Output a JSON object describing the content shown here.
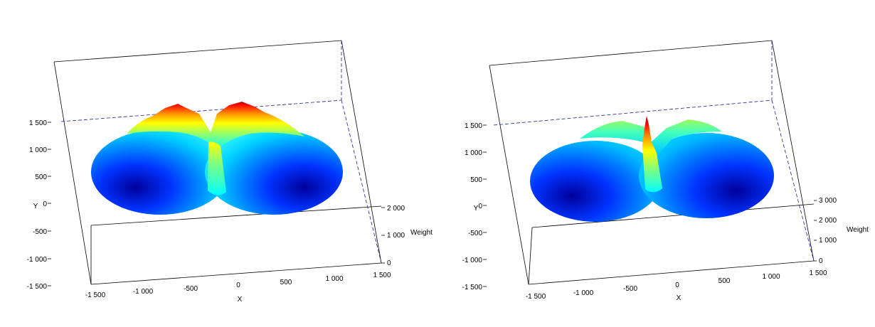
{
  "chart_data": [
    {
      "type": "surface3d",
      "xlabel": "X",
      "ylabel": "Y",
      "zlabel": "Weight",
      "xlim": [
        -1500,
        1500
      ],
      "ylim": [
        -1500,
        1500
      ],
      "zlim": [
        0,
        2000
      ],
      "x_ticks": [
        "-1 500",
        "-1 000",
        "-500",
        "0",
        "500",
        "1 000",
        "1 500"
      ],
      "y_ticks": [
        "-1 500",
        "-1 000",
        "-500",
        "0",
        "500",
        "1 000",
        "1 500"
      ],
      "z_ticks": [
        "0",
        "1 000",
        "2 000"
      ],
      "colormap": [
        "#00008f",
        "#0000ff",
        "#0080ff",
        "#00ffff",
        "#80ff80",
        "#ffff00",
        "#ff8000",
        "#ff0000",
        "#800000"
      ],
      "grid": false,
      "surface": {
        "lobes": [
          {
            "center_x": -750,
            "center_y": 0,
            "min_weight": 0
          },
          {
            "center_x": 750,
            "center_y": 0,
            "min_weight": 0
          }
        ],
        "outer_radius": 1500,
        "peaks": [
          {
            "x": -300,
            "y": 1400,
            "weight": 1950
          },
          {
            "x": 300,
            "y": 1400,
            "weight": 1950
          }
        ],
        "center_ridge_x": 0
      }
    },
    {
      "type": "surface3d",
      "xlabel": "X",
      "ylabel": "Y",
      "zlabel": "Weight",
      "xlim": [
        -1500,
        1500
      ],
      "ylim": [
        -1500,
        1500
      ],
      "zlim": [
        0,
        3000
      ],
      "x_ticks": [
        "-1 500",
        "-1 000",
        "-500",
        "0",
        "500",
        "1 000",
        "1 500"
      ],
      "y_ticks": [
        "-1 500",
        "-1 000",
        "-500",
        "0",
        "500",
        "1 000",
        "1 500"
      ],
      "z_ticks": [
        "0",
        "1 000",
        "2 000",
        "3 000"
      ],
      "colormap": [
        "#00008f",
        "#0000ff",
        "#0080ff",
        "#00ffff",
        "#80ff80",
        "#ffff00",
        "#ff8000",
        "#ff0000",
        "#800000"
      ],
      "grid": false,
      "surface": {
        "lobes": [
          {
            "center_x": -750,
            "center_y": 0,
            "min_weight": 0
          },
          {
            "center_x": 750,
            "center_y": 0,
            "min_weight": 0
          }
        ],
        "outer_radius": 1500,
        "peaks": [
          {
            "x": 0,
            "y": 1000,
            "weight": 2950
          }
        ],
        "center_ridge_x": 0
      }
    }
  ]
}
